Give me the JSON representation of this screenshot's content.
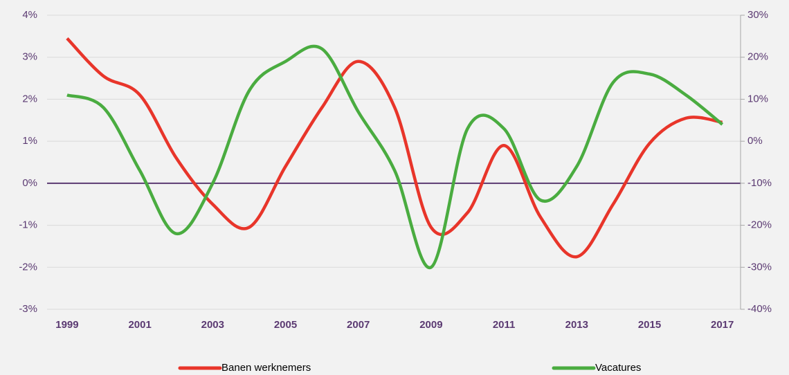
{
  "chart_data": {
    "type": "line",
    "x": [
      1999,
      2000,
      2001,
      2002,
      2003,
      2004,
      2005,
      2006,
      2007,
      2008,
      2009,
      2010,
      2011,
      2012,
      2013,
      2014,
      2015,
      2016,
      2017
    ],
    "xlim": [
      1998.45,
      2017.5
    ],
    "xticks": [
      1999,
      2001,
      2003,
      2005,
      2007,
      2009,
      2011,
      2013,
      2015,
      2017
    ],
    "ylim": [
      -3,
      4
    ],
    "yticks": [
      {
        "value": -3,
        "label": "-3%"
      },
      {
        "value": -2,
        "label": "-2%"
      },
      {
        "value": -1,
        "label": "-1%"
      },
      {
        "value": 0,
        "label": "0%"
      },
      {
        "value": 1,
        "label": "1%"
      },
      {
        "value": 2,
        "label": "2%"
      },
      {
        "value": 3,
        "label": "3%"
      },
      {
        "value": 4,
        "label": "4%"
      }
    ],
    "y2lim": [
      -40,
      30
    ],
    "y2ticks": [
      {
        "value": -40,
        "label": "-40%"
      },
      {
        "value": -30,
        "label": "-30%"
      },
      {
        "value": -20,
        "label": "-20%"
      },
      {
        "value": -10,
        "label": "-10%"
      },
      {
        "value": 0,
        "label": "0%"
      },
      {
        "value": 10,
        "label": "10%"
      },
      {
        "value": 20,
        "label": "20%"
      },
      {
        "value": 30,
        "label": "30%"
      }
    ],
    "grid": true,
    "legend": "bottom",
    "series": [
      {
        "name": "Banen werknemers",
        "color": "#e8352a",
        "values": [
          3.45,
          2.55,
          2.1,
          0.6,
          -0.5,
          -1.05,
          0.4,
          1.8,
          2.9,
          1.8,
          -1.05,
          -0.7,
          0.9,
          -0.8,
          -1.75,
          -0.5,
          0.95,
          1.55,
          1.45
        ]
      },
      {
        "name": "Vacatures",
        "color": "#4aac40",
        "axis": "y2",
        "values": [
          11,
          8,
          -7,
          -22,
          -10,
          12,
          19,
          22,
          7,
          -7,
          -30,
          3,
          3,
          -14,
          -6,
          14,
          16,
          11,
          4
        ]
      }
    ]
  }
}
